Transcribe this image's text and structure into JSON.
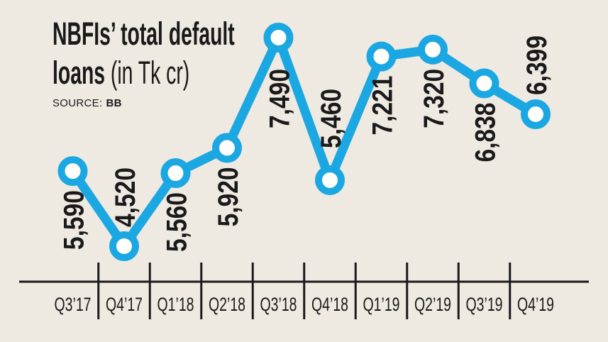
{
  "header": {
    "title_line1": "NBFIs’ total default",
    "title_line2_bold": "loans",
    "title_unit": " (in Tk cr)",
    "source_label": "SOURCE:",
    "source_value": "BB"
  },
  "colors": {
    "background": "#EEE9E1",
    "accent_blue": "#1BA7E2",
    "marker_fill": "#FEFEFC",
    "text": "#1A1A1A",
    "axis": "#1B1B1B"
  },
  "chart_data": {
    "type": "line",
    "title": "NBFIs’ total default loans (in Tk cr)",
    "source": "BB",
    "unit": "Tk cr",
    "categories": [
      "Q3’17",
      "Q4’17",
      "Q1’18",
      "Q2’18",
      "Q3’18",
      "Q4’18",
      "Q1’19",
      "Q2’19",
      "Q3’19",
      "Q4’19"
    ],
    "values": [
      5590,
      4520,
      5560,
      5920,
      7490,
      5460,
      7221,
      7320,
      6838,
      6399
    ],
    "value_labels": [
      "5,590",
      "4,520",
      "5,560",
      "5,920",
      "7,490",
      "5,460",
      "7,221",
      "7,320",
      "6,838",
      "6,399"
    ],
    "value_label_side": [
      "below",
      "above",
      "below",
      "below",
      "below",
      "above",
      "below",
      "below",
      "below",
      "above"
    ],
    "value_label_rotation": -90,
    "marker": "open-circle",
    "grid": false,
    "legend": "none",
    "y_axis_shown": false,
    "x_axis_labels_between_ticks": true
  }
}
